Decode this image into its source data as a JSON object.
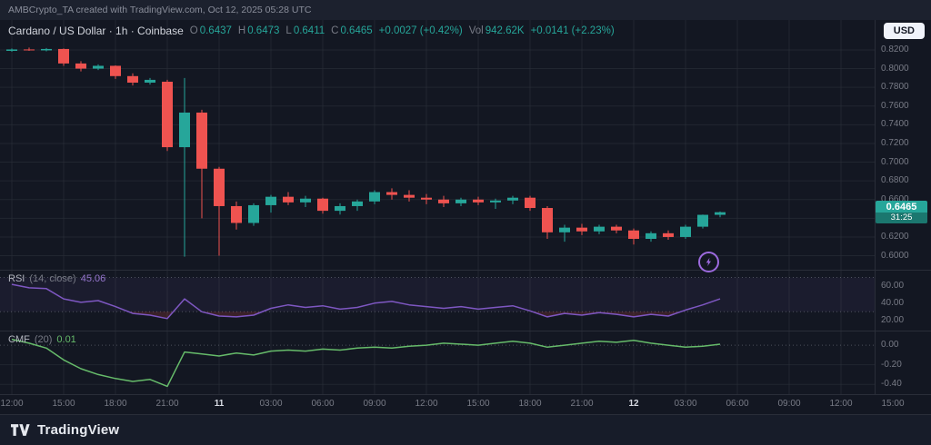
{
  "header": {
    "attribution": "AMBCrypto_TA created with TradingView.com, Oct 12, 2025 05:28 UTC",
    "currency_button": "USD"
  },
  "legend": {
    "symbol_line": "Cardano / US Dollar · 1h · Coinbase",
    "o_label": "O",
    "o": "0.6437",
    "h_label": "H",
    "h": "0.6473",
    "l_label": "L",
    "l": "0.6411",
    "c_label": "C",
    "c": "0.6465",
    "change": "+0.0027 (+0.42%)",
    "vol_label": "Vol",
    "vol": "942.62K",
    "vol_change": "+0.0141 (+2.23%)"
  },
  "price_axis": {
    "labels": [
      "0.8200",
      "0.8000",
      "0.7800",
      "0.7600",
      "0.7400",
      "0.7200",
      "0.7000",
      "0.6800",
      "0.6600",
      "0.6400",
      "0.6200",
      "0.6000"
    ],
    "last_price": "0.6465",
    "countdown": "31:25"
  },
  "rsi_legend": {
    "title": "RSI",
    "params": "(14, close)",
    "value": "45.06",
    "axis_labels": [
      "60.00",
      "40.00",
      "20.00"
    ]
  },
  "cmf_legend": {
    "title": "CMF",
    "params": "(20)",
    "value": "0.01",
    "axis_labels": [
      "0.00",
      "-0.20",
      "-0.40"
    ]
  },
  "time_axis": [
    {
      "label": "12:00",
      "emphasis": false
    },
    {
      "label": "15:00",
      "emphasis": false
    },
    {
      "label": "18:00",
      "emphasis": false
    },
    {
      "label": "21:00",
      "emphasis": false
    },
    {
      "label": "11",
      "emphasis": true
    },
    {
      "label": "03:00",
      "emphasis": false
    },
    {
      "label": "06:00",
      "emphasis": false
    },
    {
      "label": "09:00",
      "emphasis": false
    },
    {
      "label": "12:00",
      "emphasis": false
    },
    {
      "label": "15:00",
      "emphasis": false
    },
    {
      "label": "18:00",
      "emphasis": false
    },
    {
      "label": "21:00",
      "emphasis": false
    },
    {
      "label": "12",
      "emphasis": true
    },
    {
      "label": "03:00",
      "emphasis": false
    },
    {
      "label": "06:00",
      "emphasis": false
    },
    {
      "label": "09:00",
      "emphasis": false
    },
    {
      "label": "12:00",
      "emphasis": false
    },
    {
      "label": "15:00",
      "emphasis": false
    }
  ],
  "footer": {
    "brand": "TradingView"
  },
  "colors": {
    "up": "#26a69a",
    "down": "#ef5350",
    "rsi_line": "#7e57c2",
    "rsi_band": "rgba(126,87,194,0.08)",
    "rsi_oversold_fill": "rgba(239,83,80,0.18)",
    "cmf_line": "#66bb6a",
    "grid": "rgba(42,46,57,0.65)",
    "threshold": "rgba(134,137,147,0.5)",
    "axis_text": "#787b86",
    "badge_bg": "#26a69a"
  },
  "chart_data": {
    "type": "candlestick",
    "title": "Cardano / US Dollar · 1h · Coinbase",
    "x_unit": "1 hour per candle, starting Oct 10 12:00 UTC",
    "price_ylim": [
      0.585,
      0.852
    ],
    "candles": [
      [
        0.819,
        0.8215,
        0.818,
        0.8205
      ],
      [
        0.8205,
        0.8225,
        0.819,
        0.8195
      ],
      [
        0.8195,
        0.822,
        0.8185,
        0.821
      ],
      [
        0.821,
        0.8215,
        0.803,
        0.8055
      ],
      [
        0.8055,
        0.808,
        0.797,
        0.8
      ],
      [
        0.8,
        0.8045,
        0.7985,
        0.803
      ],
      [
        0.803,
        0.8035,
        0.789,
        0.792
      ],
      [
        0.792,
        0.795,
        0.782,
        0.785
      ],
      [
        0.785,
        0.79,
        0.783,
        0.788
      ],
      [
        0.786,
        0.788,
        0.712,
        0.716
      ],
      [
        0.716,
        0.79,
        0.599,
        0.753
      ],
      [
        0.753,
        0.756,
        0.64,
        0.693
      ],
      [
        0.693,
        0.695,
        0.6,
        0.653
      ],
      [
        0.653,
        0.658,
        0.628,
        0.635
      ],
      [
        0.635,
        0.656,
        0.632,
        0.654
      ],
      [
        0.654,
        0.665,
        0.646,
        0.663
      ],
      [
        0.663,
        0.668,
        0.654,
        0.657
      ],
      [
        0.657,
        0.664,
        0.652,
        0.661
      ],
      [
        0.661,
        0.662,
        0.645,
        0.648
      ],
      [
        0.648,
        0.656,
        0.644,
        0.653
      ],
      [
        0.653,
        0.66,
        0.648,
        0.658
      ],
      [
        0.658,
        0.67,
        0.655,
        0.668
      ],
      [
        0.668,
        0.672,
        0.66,
        0.665
      ],
      [
        0.665,
        0.67,
        0.658,
        0.662
      ],
      [
        0.662,
        0.666,
        0.655,
        0.66
      ],
      [
        0.66,
        0.664,
        0.652,
        0.656
      ],
      [
        0.656,
        0.662,
        0.653,
        0.66
      ],
      [
        0.66,
        0.663,
        0.654,
        0.657
      ],
      [
        0.657,
        0.661,
        0.65,
        0.659
      ],
      [
        0.659,
        0.664,
        0.655,
        0.662
      ],
      [
        0.662,
        0.664,
        0.648,
        0.651
      ],
      [
        0.651,
        0.653,
        0.618,
        0.625
      ],
      [
        0.625,
        0.633,
        0.615,
        0.63
      ],
      [
        0.63,
        0.634,
        0.622,
        0.626
      ],
      [
        0.626,
        0.633,
        0.623,
        0.631
      ],
      [
        0.631,
        0.633,
        0.624,
        0.627
      ],
      [
        0.627,
        0.629,
        0.612,
        0.618
      ],
      [
        0.618,
        0.626,
        0.615,
        0.624
      ],
      [
        0.624,
        0.627,
        0.617,
        0.62
      ],
      [
        0.62,
        0.633,
        0.618,
        0.631
      ],
      [
        0.631,
        0.644,
        0.629,
        0.6437
      ],
      [
        0.6437,
        0.6473,
        0.6411,
        0.6465
      ]
    ],
    "indicators": [
      {
        "name": "RSI (14, close)",
        "current": 45.06,
        "ylim": [
          8,
          78
        ],
        "overbought": 70,
        "oversold": 30,
        "values": [
          62,
          58,
          57,
          45,
          41,
          43,
          36,
          28,
          26,
          22,
          45,
          30,
          25,
          24,
          26,
          34,
          38,
          35,
          37,
          33,
          35,
          40,
          42,
          38,
          36,
          34,
          36,
          33,
          35,
          37,
          31,
          24,
          28,
          26,
          29,
          27,
          24,
          27,
          25,
          32,
          38,
          45.06
        ]
      },
      {
        "name": "CMF (20)",
        "current": 0.01,
        "ylim": [
          -0.5,
          0.14
        ],
        "zero_line": 0,
        "values": [
          0.06,
          0.02,
          -0.03,
          -0.15,
          -0.24,
          -0.3,
          -0.34,
          -0.37,
          -0.35,
          -0.42,
          -0.07,
          -0.09,
          -0.11,
          -0.08,
          -0.1,
          -0.06,
          -0.05,
          -0.06,
          -0.04,
          -0.05,
          -0.03,
          -0.02,
          -0.03,
          -0.01,
          0.0,
          0.02,
          0.01,
          0.0,
          0.02,
          0.04,
          0.02,
          -0.02,
          0.0,
          0.02,
          0.04,
          0.03,
          0.05,
          0.02,
          0.0,
          -0.02,
          -0.01,
          0.01
        ]
      }
    ]
  }
}
